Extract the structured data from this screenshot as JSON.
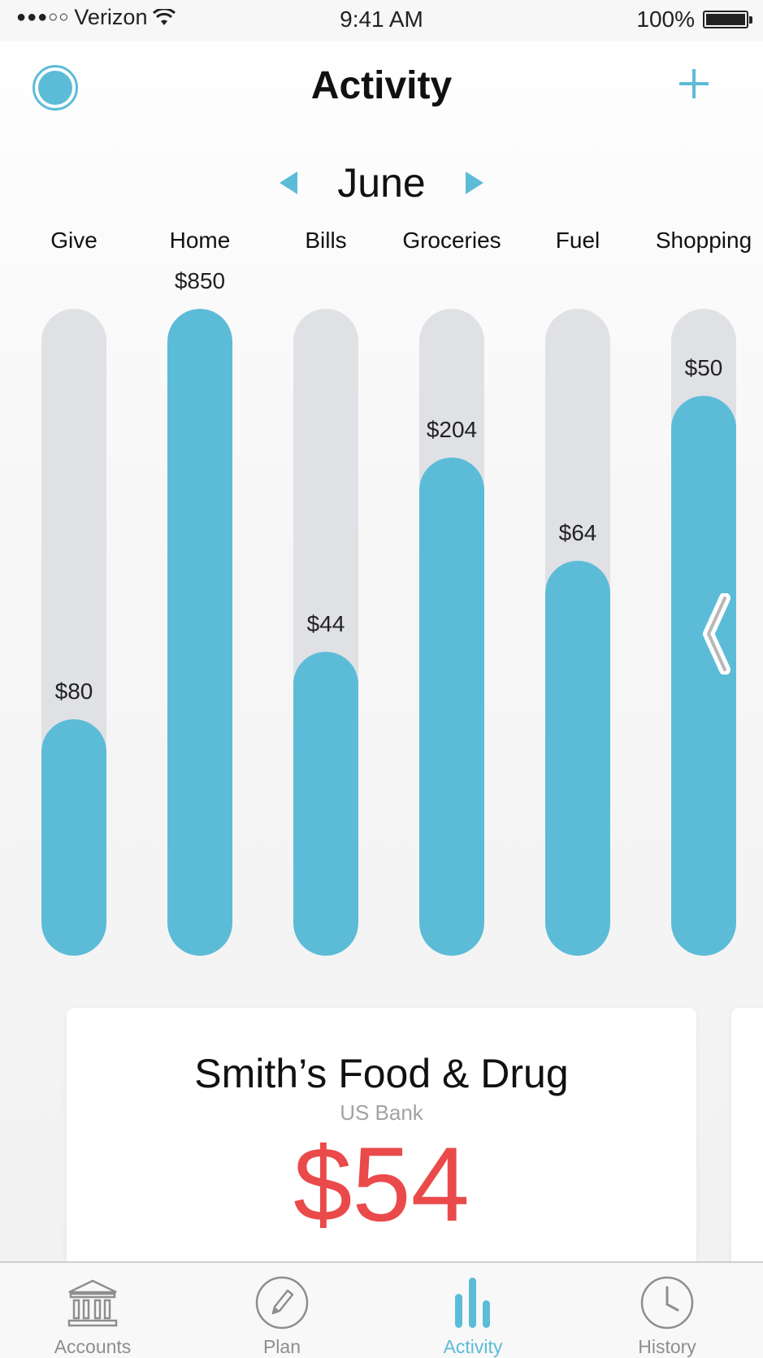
{
  "status_bar": {
    "carrier": "Verizon",
    "time": "9:41 AM",
    "battery": "100%"
  },
  "header": {
    "title": "Activity",
    "add_icon": "plus-icon",
    "profile_icon": "profile-circle-icon",
    "accent_color": "#5cbcd8"
  },
  "month_nav": {
    "month": "June"
  },
  "chart_data": {
    "type": "bar",
    "categories": [
      "Give",
      "Home",
      "Bills",
      "Groceries",
      "Fuel",
      "Shopping"
    ],
    "values_labels": [
      "$80",
      "$850",
      "$44",
      "$204",
      "$64",
      "$50"
    ],
    "fill_fraction": [
      0.365,
      1.0,
      0.47,
      0.77,
      0.61,
      0.866
    ],
    "bar_color": "#5cbcd8",
    "track_color": "#dfe1e4"
  },
  "transaction_card": {
    "merchant": "Smith’s Food & Drug",
    "bank": "US Bank",
    "amount": "$54",
    "amount_color": "#ea4a4a"
  },
  "tab_bar": {
    "tabs": [
      {
        "label": "Accounts",
        "icon": "bank-icon"
      },
      {
        "label": "Plan",
        "icon": "pencil-icon"
      },
      {
        "label": "Activity",
        "icon": "bar-chart-icon"
      },
      {
        "label": "History",
        "icon": "clock-icon"
      }
    ],
    "active_tab": "Activity"
  }
}
